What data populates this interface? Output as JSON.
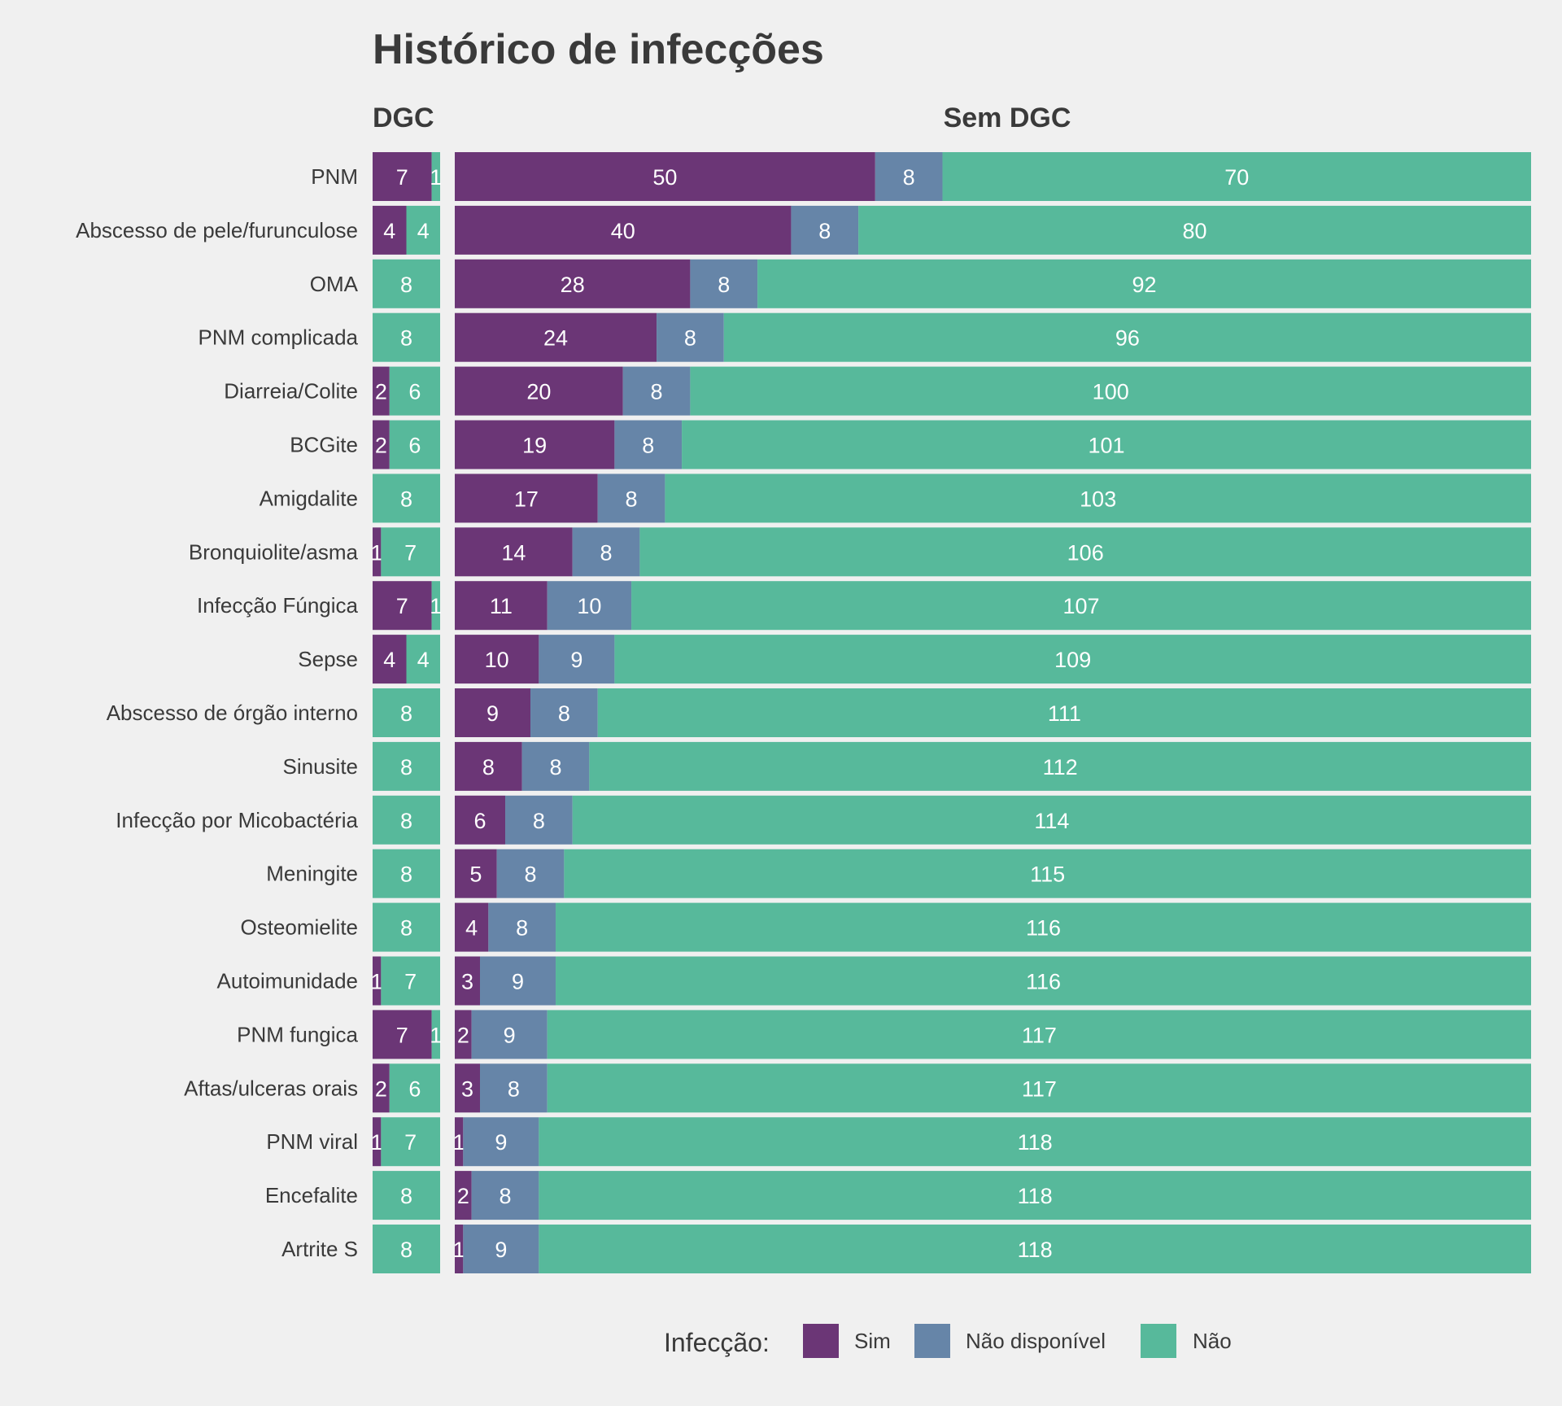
{
  "chart_data": {
    "type": "bar",
    "orientation": "horizontal",
    "stacked": true,
    "title": "Histórico de infecções",
    "facets": [
      "DGC",
      "Sem DGC"
    ],
    "categories": [
      "PNM",
      "Abscesso de pele/furunculose",
      "OMA",
      "PNM complicada",
      "Diarreia/Colite",
      "BCGite",
      "Amigdalite",
      "Bronquiolite/asma",
      "Infecção Fúngica",
      "Sepse",
      "Abscesso de órgão interno",
      "Sinusite",
      "Infecção por Micobactéria",
      "Meningite",
      "Osteomielite",
      "Autoimunidade",
      "PNM fungica",
      "Aftas/ulceras orais",
      "PNM viral",
      "Encefalite",
      "Artrite S"
    ],
    "series_names": [
      "Sim",
      "Não disponível",
      "Não"
    ],
    "colors": [
      "#6b3676",
      "#6685a8",
      "#57b99b"
    ],
    "dgc": {
      "Sim": [
        7,
        4,
        0,
        0,
        2,
        2,
        0,
        1,
        7,
        4,
        0,
        0,
        0,
        0,
        0,
        1,
        7,
        2,
        1,
        0,
        0
      ],
      "Não disponível": [
        0,
        0,
        0,
        0,
        0,
        0,
        0,
        0,
        0,
        0,
        0,
        0,
        0,
        0,
        0,
        0,
        0,
        0,
        0,
        0,
        0
      ],
      "Não": [
        1,
        4,
        8,
        8,
        6,
        6,
        8,
        7,
        1,
        4,
        8,
        8,
        8,
        8,
        8,
        7,
        1,
        6,
        7,
        8,
        8
      ]
    },
    "sem_dgc": {
      "Sim": [
        50,
        40,
        28,
        24,
        20,
        19,
        17,
        14,
        11,
        10,
        9,
        8,
        6,
        5,
        4,
        3,
        2,
        3,
        1,
        2,
        1
      ],
      "Não disponível": [
        8,
        8,
        8,
        8,
        8,
        8,
        8,
        8,
        10,
        9,
        8,
        8,
        8,
        8,
        8,
        9,
        9,
        8,
        9,
        8,
        9
      ],
      "Não": [
        70,
        80,
        92,
        96,
        100,
        101,
        103,
        106,
        107,
        109,
        111,
        112,
        114,
        115,
        116,
        116,
        117,
        117,
        118,
        118,
        118
      ]
    },
    "legend": {
      "title": "Infecção:",
      "position": "bottom"
    }
  }
}
